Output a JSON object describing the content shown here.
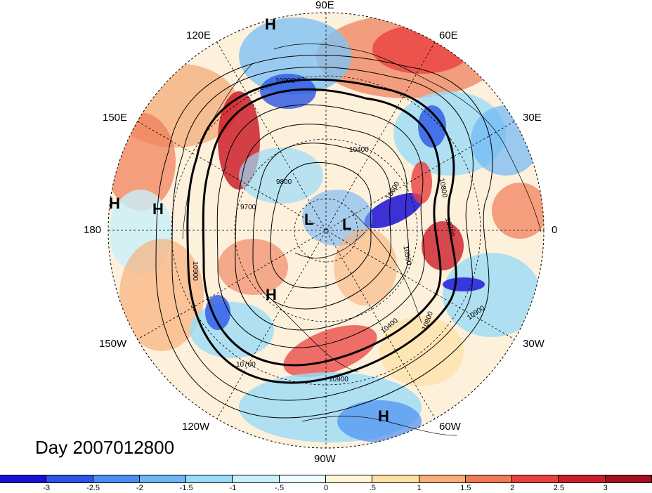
{
  "title": "Day 2007012800",
  "longitude_labels": {
    "top": "90E",
    "bottom": "90W",
    "left": "180",
    "right": "0",
    "lon120e": "120E",
    "lon60e": "60E",
    "lon150e": "150E",
    "lon30e": "30E",
    "lon150w": "150W",
    "lon30w": "30W",
    "lon120w": "120W",
    "lon60w": "60W"
  },
  "pressure_markers": [
    "H",
    "H",
    "H",
    "L",
    "L",
    "H",
    "H"
  ],
  "contour_labels": [
    "10900",
    "10400",
    "9800",
    "9700",
    "10900",
    "10800",
    "10700",
    "10600",
    "10500",
    "10400",
    "10800",
    "10900",
    "10700",
    "10900"
  ],
  "colorbar": {
    "ticks": [
      "-3",
      "-2.5",
      "-2",
      "-1.5",
      "-1",
      "-.5",
      "0",
      ".5",
      "1",
      "1.5",
      "2",
      "2.5",
      "3"
    ],
    "colors": [
      "#1a0fd6",
      "#2a55e6",
      "#4a8ef2",
      "#6fb6f7",
      "#9adcf8",
      "#c8f0fb",
      "#eefbff",
      "#fff6d8",
      "#fde0a4",
      "#f8b07a",
      "#f07a55",
      "#e94040",
      "#cc1e2a",
      "#a0101e"
    ]
  }
}
